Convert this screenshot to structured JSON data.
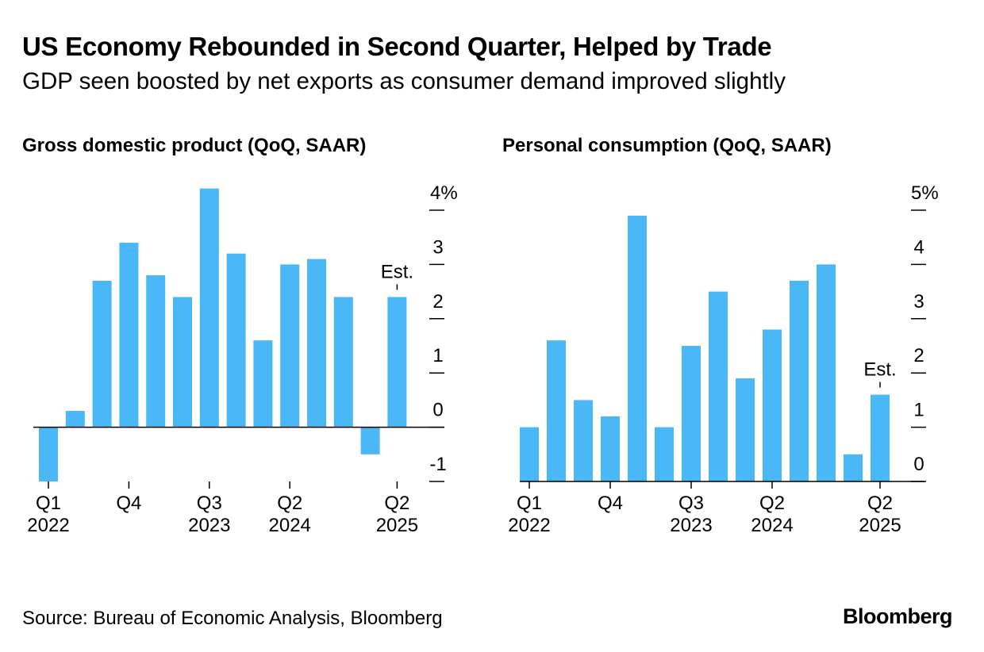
{
  "header": {
    "title": "US Economy Rebounded in Second Quarter, Helped by Trade",
    "subtitle": "GDP seen boosted by net exports as consumer demand improved slightly"
  },
  "footer": {
    "source": "Source: Bureau of Economic Analysis, Bloomberg",
    "brand": "Bloomberg"
  },
  "colors": {
    "bar": "#4AB7F7",
    "axis": "#000000"
  },
  "chart_data": [
    {
      "id": "gdp",
      "type": "bar",
      "title": "Gross domestic product (QoQ, SAAR)",
      "categories": [
        "Q1 2022",
        "Q2 2022",
        "Q3 2022",
        "Q4 2022",
        "Q1 2023",
        "Q2 2023",
        "Q3 2023",
        "Q4 2023",
        "Q1 2024",
        "Q2 2024",
        "Q3 2024",
        "Q4 2024",
        "Q1 2025",
        "Q2 2025"
      ],
      "values": [
        -1.0,
        0.3,
        2.7,
        3.4,
        2.8,
        2.4,
        4.4,
        3.2,
        1.6,
        3.0,
        3.1,
        2.4,
        -0.5,
        2.4
      ],
      "ylim": [
        -1,
        4
      ],
      "yticks": [
        -1,
        0,
        1,
        2,
        3,
        4
      ],
      "ytick_labels": [
        "-1",
        "0",
        "1",
        "2",
        "3",
        "4%"
      ],
      "xtick_labels": [
        {
          "index": 0,
          "line1": "Q1",
          "line2": "2022"
        },
        {
          "index": 3,
          "line1": "Q4",
          "line2": ""
        },
        {
          "index": 6,
          "line1": "Q3",
          "line2": "2023"
        },
        {
          "index": 9,
          "line1": "Q2",
          "line2": "2024"
        },
        {
          "index": 13,
          "line1": "Q2",
          "line2": "2025"
        }
      ],
      "annotation": {
        "index": 13,
        "text": "Est."
      }
    },
    {
      "id": "consumption",
      "type": "bar",
      "title": "Personal consumption (QoQ, SAAR)",
      "categories": [
        "Q1 2022",
        "Q2 2022",
        "Q3 2022",
        "Q4 2022",
        "Q1 2023",
        "Q2 2023",
        "Q3 2023",
        "Q4 2023",
        "Q1 2024",
        "Q2 2024",
        "Q3 2024",
        "Q4 2024",
        "Q1 2025",
        "Q2 2025"
      ],
      "values": [
        1.0,
        2.6,
        1.5,
        1.2,
        4.9,
        1.0,
        2.5,
        3.5,
        1.9,
        2.8,
        3.7,
        4.0,
        0.5,
        1.6
      ],
      "ylim": [
        0,
        5
      ],
      "yticks": [
        0,
        1,
        2,
        3,
        4,
        5
      ],
      "ytick_labels": [
        "0",
        "1",
        "2",
        "3",
        "4",
        "5%"
      ],
      "xtick_labels": [
        {
          "index": 0,
          "line1": "Q1",
          "line2": "2022"
        },
        {
          "index": 3,
          "line1": "Q4",
          "line2": ""
        },
        {
          "index": 6,
          "line1": "Q3",
          "line2": "2023"
        },
        {
          "index": 9,
          "line1": "Q2",
          "line2": "2024"
        },
        {
          "index": 13,
          "line1": "Q2",
          "line2": "2025"
        }
      ],
      "annotation": {
        "index": 13,
        "text": "Est."
      }
    }
  ]
}
